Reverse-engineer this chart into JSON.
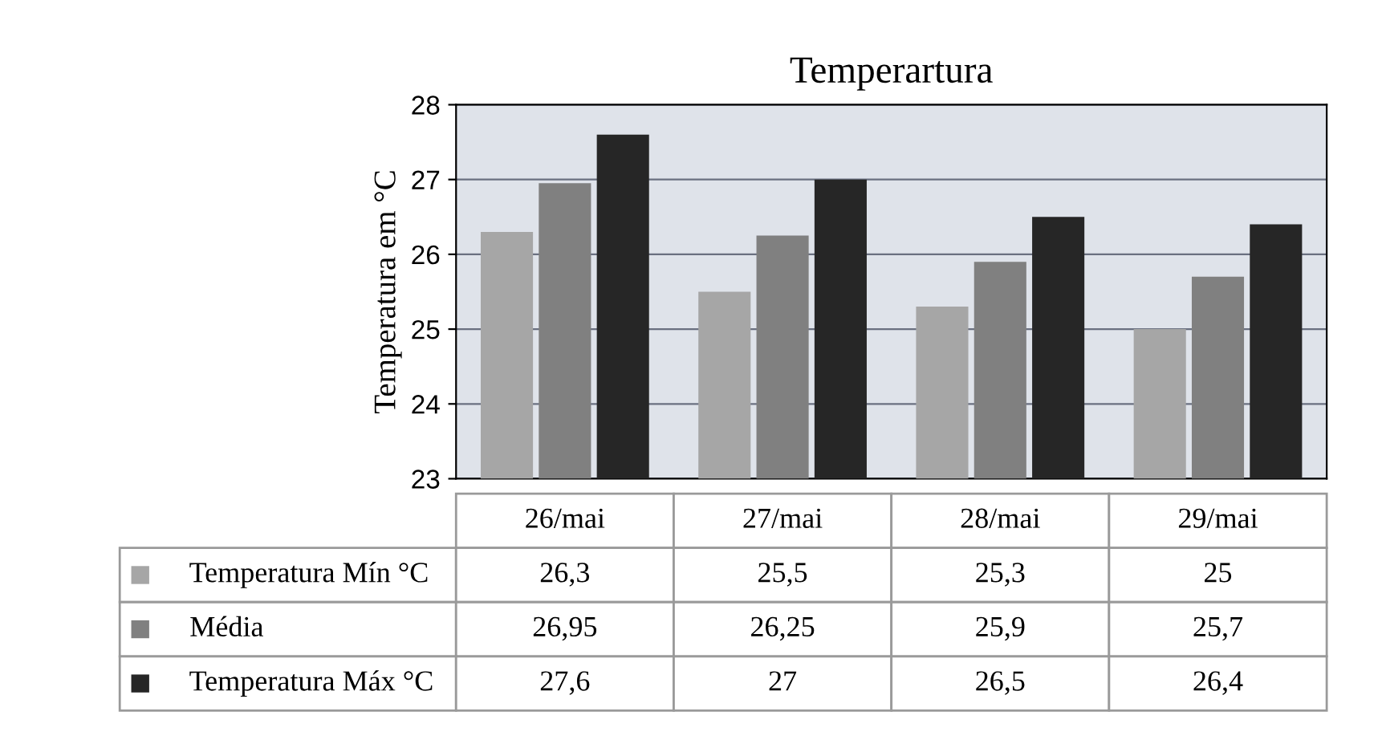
{
  "chart_data": {
    "type": "bar",
    "title": "Temperartura",
    "ylabel": "Temperatura em °C",
    "categories": [
      "26/mai",
      "27/mai",
      "28/mai",
      "29/mai"
    ],
    "series": [
      {
        "name": "Temperatura Mín °C",
        "color": "#a6a6a6",
        "values": [
          26.3,
          25.5,
          25.3,
          25
        ],
        "value_labels": [
          "26,3",
          "25,5",
          "25,3",
          "25"
        ]
      },
      {
        "name": "Média",
        "color": "#808080",
        "values": [
          26.95,
          26.25,
          25.9,
          25.7
        ],
        "value_labels": [
          "26,95",
          "26,25",
          "25,9",
          "25,7"
        ]
      },
      {
        "name": "Temperatura Máx °C",
        "color": "#262626",
        "values": [
          27.6,
          27,
          26.5,
          26.4
        ],
        "value_labels": [
          "27,6",
          "27",
          "26,5",
          "26,4"
        ]
      }
    ],
    "ylim": [
      23,
      28
    ],
    "yticks": [
      23,
      24,
      25,
      26,
      27,
      28
    ],
    "grid": "y",
    "legend": "bottom"
  }
}
